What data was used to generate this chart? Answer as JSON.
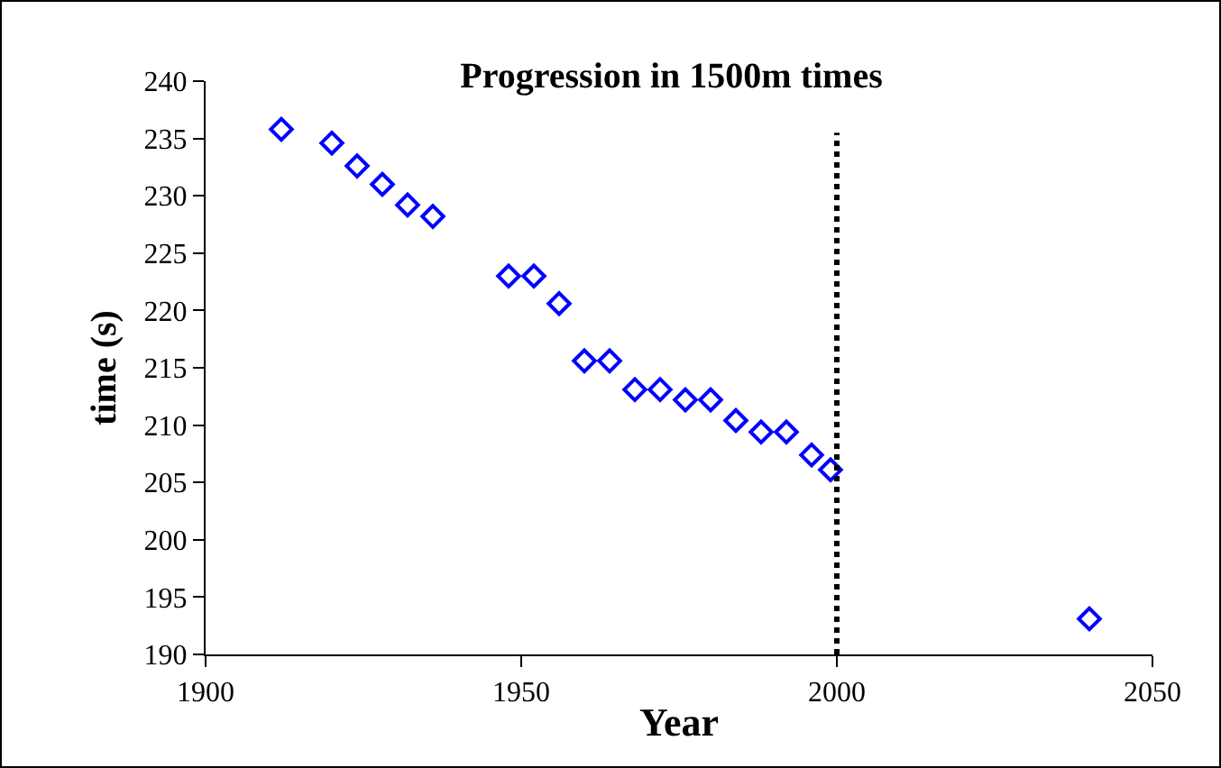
{
  "chart_data": {
    "type": "scatter",
    "title": "Progression in 1500m times",
    "xlabel": "Year",
    "ylabel": "time (s)",
    "x": [
      1912,
      1920,
      1924,
      1928,
      1932,
      1936,
      1948,
      1952,
      1956,
      1960,
      1964,
      1968,
      1972,
      1976,
      1980,
      1984,
      1988,
      1992,
      1996,
      1999,
      2040
    ],
    "series": [
      {
        "color": "#0000ff",
        "values": [
          235.8,
          234.6,
          232.6,
          231,
          229.2,
          228.2,
          223,
          223,
          220.6,
          215.6,
          215.6,
          213.1,
          213.1,
          212.2,
          212.2,
          210.4,
          209.4,
          209.4,
          207.4,
          206.1,
          193.1
        ]
      }
    ],
    "xlim": [
      1900,
      2050
    ],
    "xticks": [
      1900,
      1950,
      2000,
      2050
    ],
    "ylim": [
      190,
      240
    ],
    "yticks": [
      190,
      195,
      200,
      205,
      210,
      215,
      220,
      225,
      230,
      235,
      240
    ],
    "marker": "diamond",
    "grid": false,
    "ref_lines": [
      {
        "axis": "x",
        "value": 2000,
        "color": "#000000",
        "line_style": "dotted"
      }
    ]
  }
}
